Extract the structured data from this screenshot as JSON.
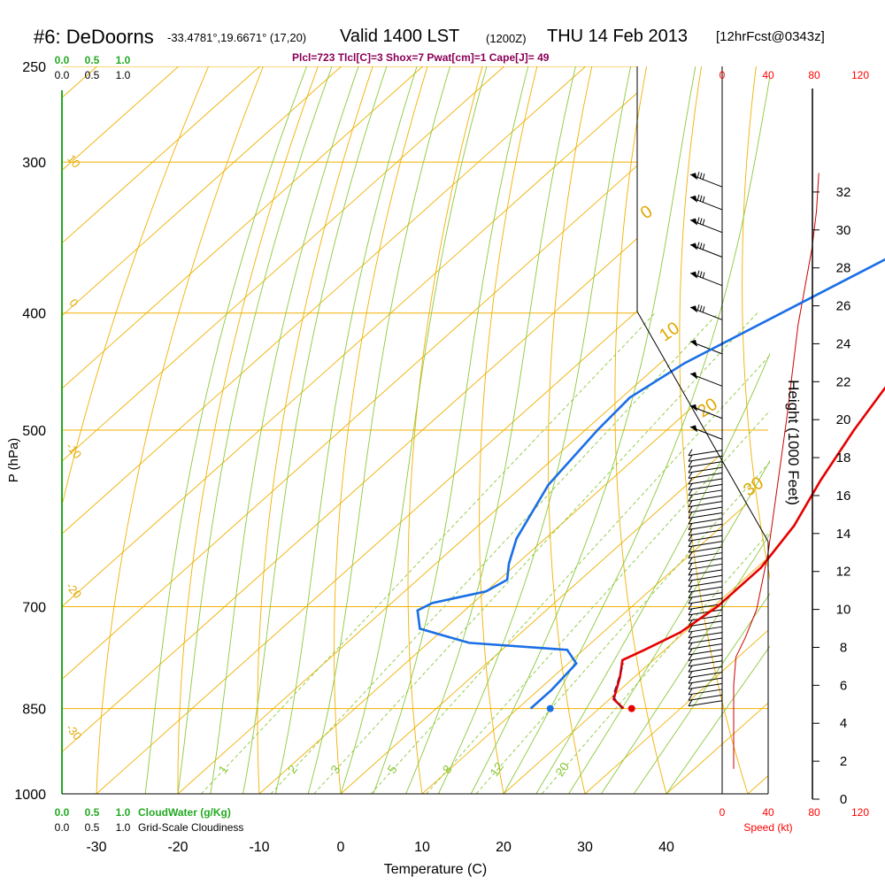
{
  "header": {
    "title": "#6: DeDoorns",
    "coords": "-33.4781°,19.6671° (17,20)",
    "valid": "Valid 1400 LST",
    "utc": "(1200Z)",
    "date": "THU 14 Feb 2013",
    "forecast": "[12hrFcst@0343z]",
    "params": "Plcl=723 Tlcl[C]=3 Shox=7 Pwat[cm]=1 Cape[J]= 49"
  },
  "chart_data": {
    "type": "line",
    "title": "#6: DeDoorns",
    "xlabel": "Temperature (C)",
    "ylabel": "P (hPa)",
    "y2label": "Height (1000 Feet)",
    "xlim": [
      -35,
      45
    ],
    "ylim": [
      1000,
      250
    ],
    "yscale": "log",
    "x_ticks": [
      -30,
      -20,
      -10,
      0,
      10,
      20,
      30,
      40
    ],
    "p_ticks": [
      250,
      300,
      400,
      500,
      700,
      850,
      1000
    ],
    "height_ticks": [
      0,
      2,
      4,
      6,
      8,
      10,
      12,
      14,
      16,
      18,
      20,
      22,
      24,
      26,
      28,
      30,
      32
    ],
    "speed_ticks_top": [
      "0",
      "40",
      "80",
      "120"
    ],
    "speed_ticks_bottom": [
      "0",
      "40",
      "80",
      "120"
    ],
    "speed_label": "Speed (kt)",
    "cloud_scale_top": [
      "0.0",
      "0.5",
      "1.0"
    ],
    "cloud_scale_top2": [
      "0.0",
      "0.5",
      "1.0"
    ],
    "cloud_scale_bottom": [
      "0.0",
      "0.5",
      "1.0"
    ],
    "cloud_scale_bottom2": [
      "0.0",
      "0.5",
      "1.0"
    ],
    "cloudwater_label": "CloudWater (g/Kg)",
    "cloudiness_label": "Grid-Scale Cloudiness",
    "theta_labels": [
      "10",
      "0",
      "-10",
      "-20",
      "-30"
    ],
    "thetae_labels": [
      "0",
      "10",
      "20",
      "30"
    ],
    "mixing_ratio_labels": [
      "1",
      "2",
      "3",
      "5",
      "8",
      "12",
      "20"
    ],
    "series": [
      {
        "type": "temperature",
        "color": "#e60000",
        "points": [
          [
            23,
            850
          ],
          [
            20.5,
            835
          ],
          [
            18.2,
            800
          ],
          [
            16.2,
            775
          ],
          [
            17.5,
            760
          ],
          [
            19.5,
            735
          ],
          [
            20.5,
            700
          ],
          [
            20.5,
            650
          ],
          [
            18.8,
            600
          ],
          [
            15.8,
            550
          ],
          [
            13,
            500
          ],
          [
            7.5,
            400
          ],
          [
            4.5,
            350
          ],
          [
            2.5,
            300
          ],
          [
            1,
            265
          ]
        ]
      },
      {
        "type": "dewpoint",
        "color": "#1a6fe6",
        "points": [
          [
            11.6,
            850
          ],
          [
            11.6,
            820
          ],
          [
            11,
            780
          ],
          [
            8,
            760
          ],
          [
            -5,
            750
          ],
          [
            -13,
            730
          ],
          [
            -15.8,
            705
          ],
          [
            -15,
            695
          ],
          [
            -10,
            680
          ],
          [
            -9,
            665
          ],
          [
            -11,
            645
          ],
          [
            -13.5,
            615
          ],
          [
            -17,
            555
          ],
          [
            -18.5,
            500
          ],
          [
            -19,
            470
          ],
          [
            -17,
            440
          ],
          [
            -12,
            400
          ],
          [
            -5,
            350
          ],
          [
            -2,
            310
          ],
          [
            -2,
            280
          ],
          [
            -3,
            262
          ]
        ]
      },
      {
        "type": "parcel",
        "color": "#7a1030",
        "points": [
          [
            22.8,
            850
          ],
          [
            20,
            830
          ],
          [
            16.8,
            780
          ]
        ]
      }
    ],
    "surface_markers": [
      {
        "type": "temperature",
        "x": 24,
        "p": 850,
        "color": "#e60000"
      },
      {
        "type": "dewpoint",
        "x": 14,
        "p": 850,
        "color": "#1a6fe6"
      }
    ],
    "wind_speed_profile": {
      "units": "kt",
      "color": "#cc0000",
      "points": [
        [
          10,
          1.6
        ],
        [
          10,
          6
        ],
        [
          12,
          7.5
        ],
        [
          20,
          8.5
        ],
        [
          30,
          10
        ],
        [
          40,
          13
        ],
        [
          56,
          20
        ],
        [
          66,
          25
        ],
        [
          72,
          27
        ],
        [
          78,
          29
        ],
        [
          82,
          31
        ],
        [
          84,
          33
        ]
      ]
    },
    "wind_barbs_heights": [
      5,
      5.3,
      5.6,
      5.9,
      6.2,
      6.5,
      6.8,
      7.1,
      7.4,
      7.7,
      8,
      8.3,
      8.6,
      8.9,
      9.2,
      9.5,
      9.8,
      10.1,
      10.4,
      10.7,
      11,
      11.3,
      11.6,
      11.9,
      12.2,
      12.5,
      12.8,
      13.1,
      13.4,
      13.7,
      14,
      14.3,
      14.6,
      14.9,
      15.2,
      15.5,
      15.8,
      16.1,
      16.4,
      16.7,
      17,
      17.3,
      17.6,
      17.9,
      18.2,
      19.2,
      20.3,
      22,
      23.7,
      25.5,
      27.3,
      28.8,
      30.1,
      31.3,
      32.5
    ],
    "grid": true,
    "colors": {
      "isotherm": "#f0b000",
      "dry_adiabat": "#f0b000",
      "moist_adiabat": "#8cc83c",
      "mixing_ratio": "#8cc83c",
      "cloud": "#22aa22",
      "speed": "#ff0000"
    }
  }
}
